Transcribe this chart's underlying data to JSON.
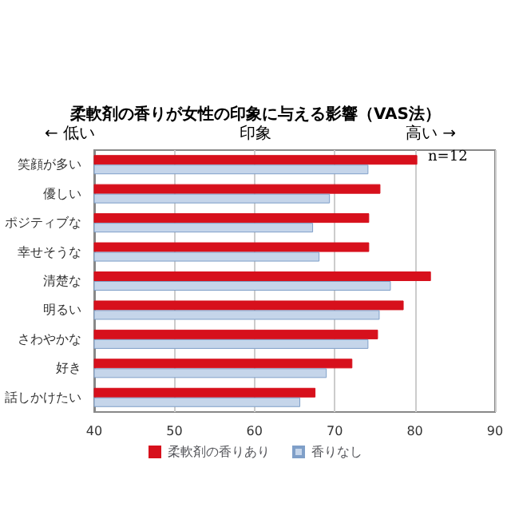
{
  "chart_data": {
    "type": "bar",
    "orientation": "horizontal",
    "title": "柔軟剤の香りが女性の印象に与える影響（VAS法）",
    "categories": [
      "笑顔が多い",
      "優しい",
      "ポジティブな",
      "幸せそうな",
      "清楚な",
      "明るい",
      "さわやかな",
      "好き",
      "話しかけたい"
    ],
    "series": [
      {
        "name": "柔軟剤の香りあり",
        "color": "#d7101c",
        "values": [
          80.3,
          75.7,
          74.3,
          74.3,
          82,
          78.6,
          75.4,
          72.2,
          67.6
        ]
      },
      {
        "name": "香りなし",
        "color": "#c5d5ea",
        "values": [
          74.2,
          69.4,
          67.3,
          68.1,
          77,
          75.6,
          74.2,
          69,
          65.7
        ]
      }
    ],
    "xlim": [
      40,
      90
    ],
    "xticks": [
      40,
      50,
      60,
      70,
      80,
      90
    ],
    "grid": "x",
    "legend": "bottom",
    "annotations": [
      "← 低い",
      "印象",
      "高い →",
      "n=12"
    ]
  }
}
